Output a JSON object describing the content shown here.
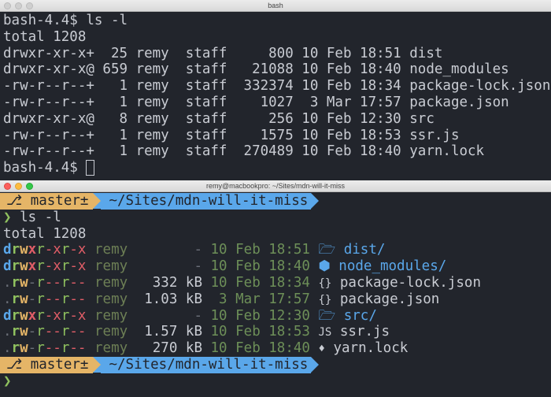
{
  "window1": {
    "title": "bash",
    "lines": [
      "bash-4.4$ ls -l",
      "total 1208",
      "drwxr-xr-x+  25 remy  staff     800 10 Feb 18:51 dist",
      "drwxr-xr-x@ 659 remy  staff   21088 10 Feb 18:40 node_modules",
      "-rw-r--r--+   1 remy  staff  332374 10 Feb 18:34 package-lock.json",
      "-rw-r--r--+   1 remy  staff    1027  3 Mar 17:57 package.json",
      "drwxr-xr-x@   8 remy  staff     256 10 Feb 12:30 src",
      "-rw-r--r--+   1 remy  staff    1575 10 Feb 18:53 ssr.js",
      "-rw-r--r--+   1 remy  staff  270489 10 Feb 18:40 yarn.lock"
    ],
    "prompt": "bash-4.4$ "
  },
  "window2": {
    "title": "remy@macbookpro: ~/Sites/mdn-will-it-miss",
    "branch": "master±",
    "path": "~/Sites/mdn-will-it-miss",
    "prompt_symbol": "❯",
    "command": "ls -l",
    "total": "total 1208",
    "rows": [
      {
        "perms": "drwxr-xr-x",
        "user": "remy",
        "size": "       -",
        "date": "10 Feb 18:51",
        "icon": "folder-icon",
        "icon_char": "🗁",
        "name": "dist/",
        "dir": true
      },
      {
        "perms": "drwxr-xr-x",
        "user": "remy",
        "size": "       -",
        "date": "10 Feb 18:40",
        "icon": "node-icon",
        "icon_char": "⬢",
        "name": "node_modules/",
        "dir": true
      },
      {
        "perms": ".rw-r--r--",
        "user": "remy",
        "size": "  332 kB",
        "date": "10 Feb 18:34",
        "icon": "json-icon",
        "icon_char": "{}",
        "name": "package-lock.json",
        "dir": false
      },
      {
        "perms": ".rw-r--r--",
        "user": "remy",
        "size": "1.03 kB",
        "date": " 3 Mar 17:57",
        "icon": "json-icon",
        "icon_char": "{}",
        "name": "package.json",
        "dir": false
      },
      {
        "perms": "drwxr-xr-x",
        "user": "remy",
        "size": "       -",
        "date": "10 Feb 12:30",
        "icon": "folder-icon",
        "icon_char": "🗁",
        "name": "src/",
        "dir": true
      },
      {
        "perms": ".rw-r--r--",
        "user": "remy",
        "size": "1.57 kB",
        "date": "10 Feb 18:53",
        "icon": "js-icon",
        "icon_char": "JS",
        "name": "ssr.js",
        "dir": false
      },
      {
        "perms": ".rw-r--r--",
        "user": "remy",
        "size": "  270 kB",
        "date": "10 Feb 18:40",
        "icon": "gem-icon",
        "icon_char": "♦",
        "name": "yarn.lock",
        "dir": false
      }
    ]
  },
  "colors": {
    "background": "#22252c",
    "branch": "#e5b567",
    "path": "#5aa7ea",
    "prompt": "#8fc15f"
  }
}
